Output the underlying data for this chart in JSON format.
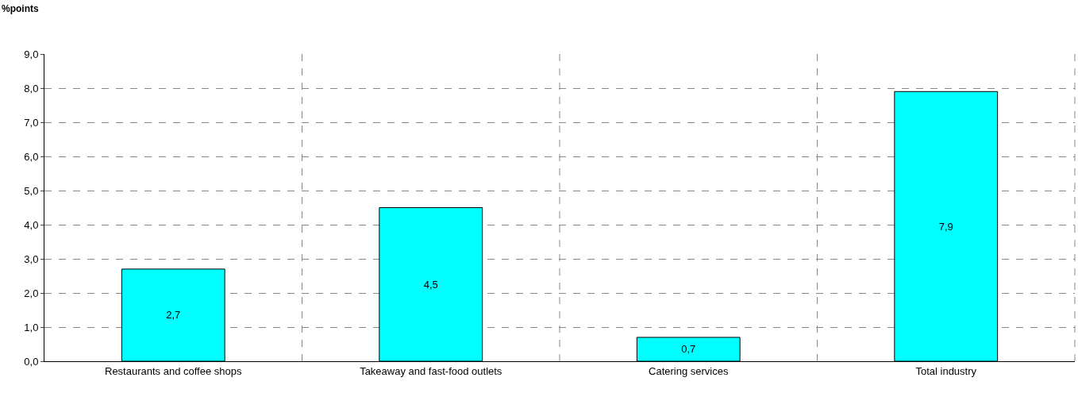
{
  "chart_data": {
    "type": "bar",
    "ylabel": "%points",
    "categories": [
      "Restaurants and coffee shops",
      "Takeaway and fast-food outlets",
      "Catering services",
      "Total industry"
    ],
    "values": [
      2.7,
      4.5,
      0.7,
      7.9
    ],
    "value_labels": [
      "2,7",
      "4,5",
      "0,7",
      "7,9"
    ],
    "color": "#00ffff",
    "ylim": [
      0,
      9
    ],
    "yticks": [
      {
        "value": 0,
        "label": "0,0"
      },
      {
        "value": 1,
        "label": "1,0"
      },
      {
        "value": 2,
        "label": "2,0"
      },
      {
        "value": 3,
        "label": "3,0"
      },
      {
        "value": 4,
        "label": "4,0"
      },
      {
        "value": 5,
        "label": "5,0"
      },
      {
        "value": 6,
        "label": "6,0"
      },
      {
        "value": 7,
        "label": "7,0"
      },
      {
        "value": 8,
        "label": "8,0"
      },
      {
        "value": 9,
        "label": "9,0"
      }
    ],
    "grid": true
  }
}
